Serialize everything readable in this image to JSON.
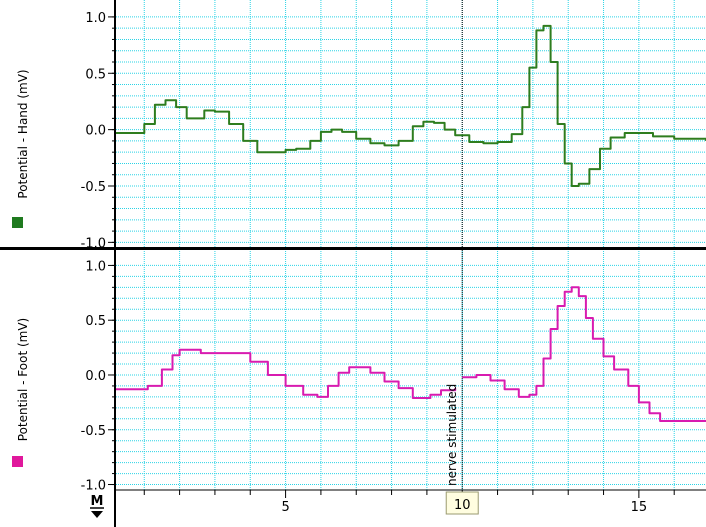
{
  "chart_data": {
    "type": "line",
    "xlim": [
      0.2,
      16.9
    ],
    "x_ticks": [
      5,
      10,
      15
    ],
    "grid": true,
    "cursor": {
      "x": 10,
      "label": "10"
    },
    "annotation": {
      "text": "nerve stimulated",
      "x": 10
    },
    "x_menu_label": "M",
    "panels": [
      {
        "ylabel": "Potential - Hand (mV)",
        "ylim": [
          -1.05,
          1.15
        ],
        "y_ticks": [
          -1.0,
          -0.5,
          0.0,
          0.5,
          1.0
        ],
        "y_tick_labels": [
          "-1.0",
          "-0.5",
          "0.0",
          "0.5",
          "1.0"
        ],
        "color": "#2e7d1e",
        "legend_color": "#1f7a1f",
        "series": [
          {
            "x": [
              0.2,
              0.8,
              1.0,
              1.3,
              1.6,
              1.9,
              2.2,
              2.4,
              2.7,
              3.0,
              3.4,
              3.8,
              4.2,
              4.6,
              5.0,
              5.3,
              5.7,
              6.0,
              6.3,
              6.6,
              7.0,
              7.4,
              7.8,
              8.2,
              8.6,
              8.9,
              9.2,
              9.5,
              9.8,
              10.2,
              10.6,
              11.0,
              11.4,
              11.7,
              11.9,
              12.1,
              12.3,
              12.5,
              12.7,
              12.9,
              13.1,
              13.3,
              13.6,
              13.9,
              14.2,
              14.6,
              15.0,
              15.4,
              16.0,
              16.9
            ],
            "y": [
              -0.03,
              -0.03,
              0.05,
              0.22,
              0.26,
              0.2,
              0.1,
              0.1,
              0.17,
              0.16,
              0.05,
              -0.1,
              -0.2,
              -0.2,
              -0.18,
              -0.17,
              -0.1,
              -0.02,
              0.0,
              -0.02,
              -0.08,
              -0.12,
              -0.14,
              -0.1,
              0.03,
              0.07,
              0.06,
              0.0,
              -0.05,
              -0.11,
              -0.12,
              -0.11,
              -0.04,
              0.2,
              0.55,
              0.88,
              0.92,
              0.6,
              0.05,
              -0.3,
              -0.5,
              -0.48,
              -0.35,
              -0.17,
              -0.07,
              -0.03,
              -0.03,
              -0.06,
              -0.08,
              -0.1
            ]
          }
        ]
      },
      {
        "ylabel": "Potential - Foot (mV)",
        "ylim": [
          -1.05,
          1.15
        ],
        "y_ticks": [
          -1.0,
          -0.5,
          0.0,
          0.5,
          1.0
        ],
        "y_tick_labels": [
          "-1.0",
          "-0.5",
          "0.0",
          "0.5",
          "1.0"
        ],
        "color": "#d81bb0",
        "legend_color": "#e0189c",
        "series": [
          {
            "x": [
              0.2,
              0.8,
              1.1,
              1.5,
              1.8,
              2.0,
              2.3,
              2.6,
              3.0,
              3.5,
              4.0,
              4.5,
              5.0,
              5.5,
              5.9,
              6.2,
              6.5,
              6.8,
              7.1,
              7.4,
              7.8,
              8.2,
              8.6,
              8.9,
              9.1,
              9.4,
              9.8
            ],
            "y": [
              -0.13,
              -0.13,
              -0.1,
              0.05,
              0.18,
              0.23,
              0.23,
              0.2,
              0.2,
              0.2,
              0.12,
              0.0,
              -0.1,
              -0.18,
              -0.2,
              -0.1,
              0.02,
              0.07,
              0.07,
              0.02,
              -0.06,
              -0.12,
              -0.21,
              -0.21,
              -0.18,
              -0.14,
              -0.12
            ]
          },
          {
            "x": [
              10.0,
              10.4,
              10.8,
              11.2,
              11.6,
              11.9,
              12.1,
              12.3,
              12.5,
              12.7,
              12.9,
              13.1,
              13.3,
              13.5,
              13.7,
              14.0,
              14.3,
              14.7,
              15.0,
              15.3,
              15.6,
              16.0,
              16.9
            ],
            "y": [
              -0.02,
              0.0,
              -0.05,
              -0.13,
              -0.2,
              -0.18,
              -0.1,
              0.15,
              0.42,
              0.63,
              0.76,
              0.8,
              0.72,
              0.52,
              0.33,
              0.17,
              0.05,
              -0.1,
              -0.25,
              -0.35,
              -0.42,
              -0.42,
              -0.42
            ]
          }
        ]
      }
    ]
  }
}
